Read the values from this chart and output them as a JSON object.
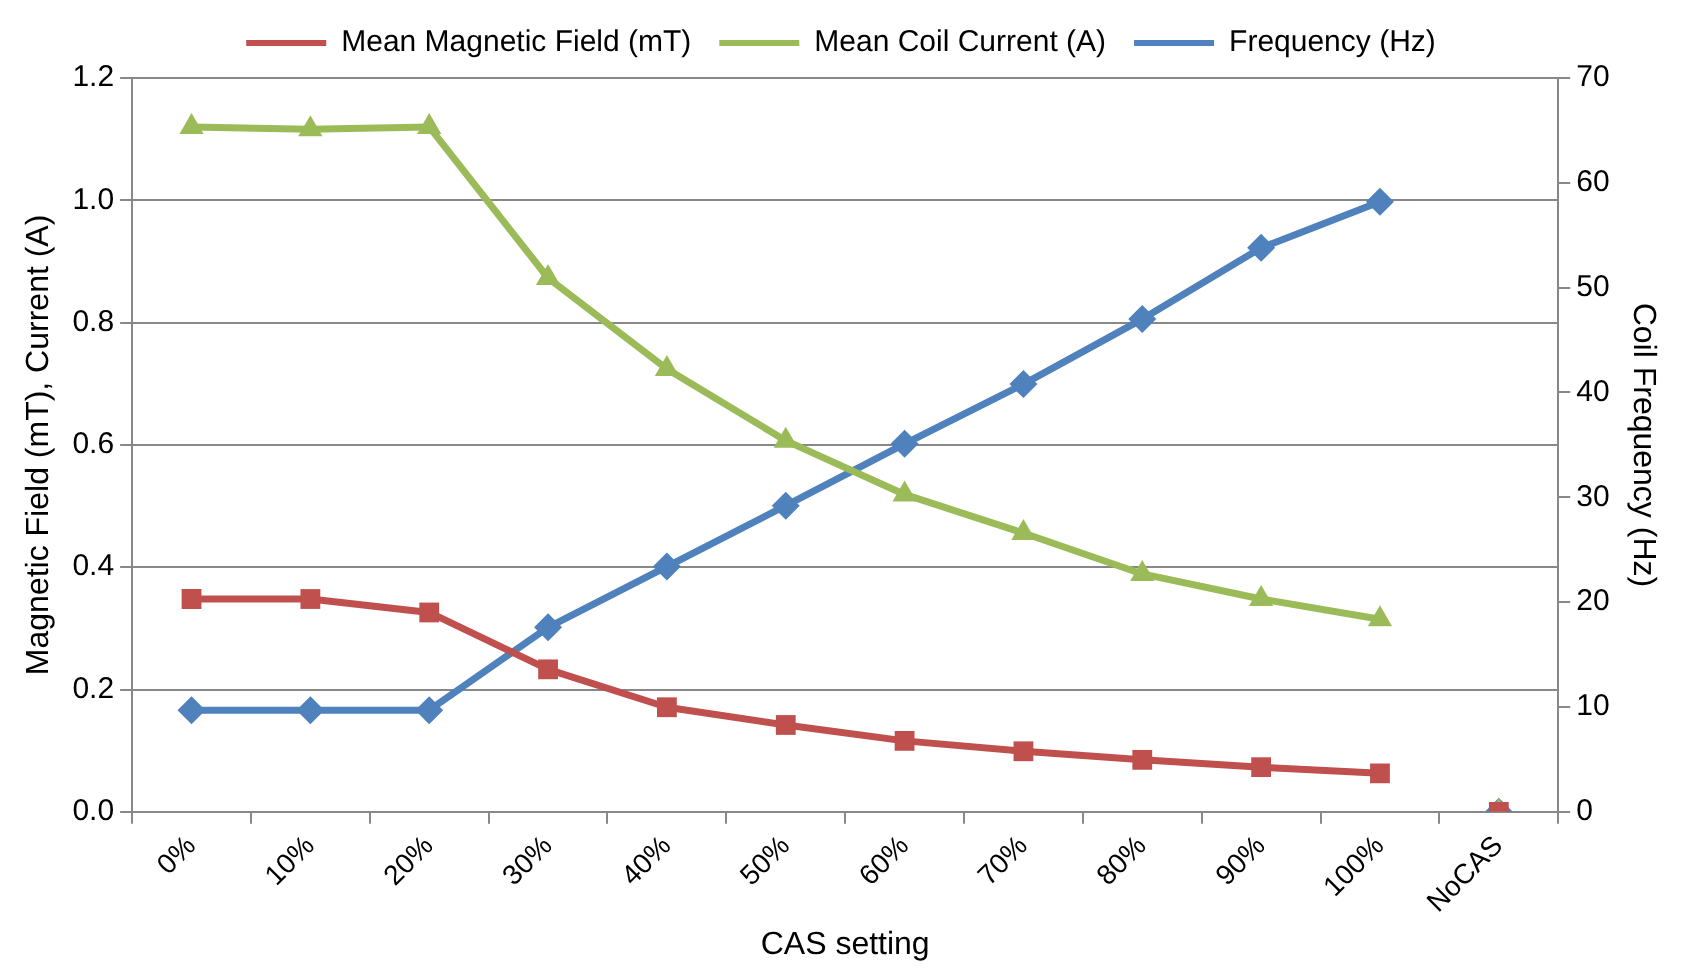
{
  "chart_data": {
    "type": "line",
    "xlabel": "CAS setting",
    "ylabel": "Magnetic Field (mT), Current (A)",
    "y2label": "Coil Frequency (Hz)",
    "categories": [
      "0%",
      "10%",
      "20%",
      "30%",
      "40%",
      "50%",
      "60%",
      "70%",
      "80%",
      "90%",
      "100%",
      "NoCAS"
    ],
    "series": [
      {
        "name": "Mean Magnetic Field (mT)",
        "color": "#c0504d",
        "marker": "square",
        "values": [
          0.348,
          0.348,
          0.326,
          0.233,
          0.171,
          0.142,
          0.116,
          0.099,
          0.085,
          0.073,
          0.063,
          null
        ]
      },
      {
        "name": "Mean Coil Current (A)",
        "color": "#9bbb59",
        "marker": "triangle",
        "values": [
          1.12,
          1.116,
          1.12,
          0.873,
          0.724,
          0.607,
          0.519,
          0.456,
          0.389,
          0.348,
          0.315,
          null
        ]
      },
      {
        "name": "Frequency (Hz)",
        "color": "#4f81bd",
        "marker": "diamond",
        "axis": "y2",
        "values": [
          9.7,
          9.7,
          9.7,
          17.6,
          23.4,
          29.2,
          35.1,
          40.8,
          47.0,
          53.8,
          58.2,
          null
        ]
      },
      {
        "type": "scatter",
        "color": "#c0504d",
        "marker": "square",
        "x": [
          "NoCAS"
        ],
        "values": [
          0
        ]
      },
      {
        "type": "scatter",
        "color": "#9bbb59",
        "marker": "triangle",
        "x": [
          "NoCAS"
        ],
        "values": [
          0
        ]
      },
      {
        "type": "scatter",
        "color": "#4f81bd",
        "marker": "diamond",
        "axis": "y2",
        "x": [
          "NoCAS"
        ],
        "values": [
          0
        ]
      }
    ],
    "ylim": [
      0,
      1.2
    ],
    "yticks": [
      {
        "value": 0,
        "label": "0.0"
      },
      {
        "value": 0.2,
        "label": "0.2"
      },
      {
        "value": 0.4,
        "label": "0.4"
      },
      {
        "value": 0.6,
        "label": "0.6"
      },
      {
        "value": 0.8,
        "label": "0.8"
      },
      {
        "value": 1,
        "label": "1.0"
      },
      {
        "value": 1.2,
        "label": "1.2"
      }
    ],
    "y2lim": [
      0,
      70
    ],
    "y2ticks": [
      0,
      10,
      20,
      30,
      40,
      50,
      60,
      70
    ],
    "grid": "y",
    "legend": "top"
  }
}
